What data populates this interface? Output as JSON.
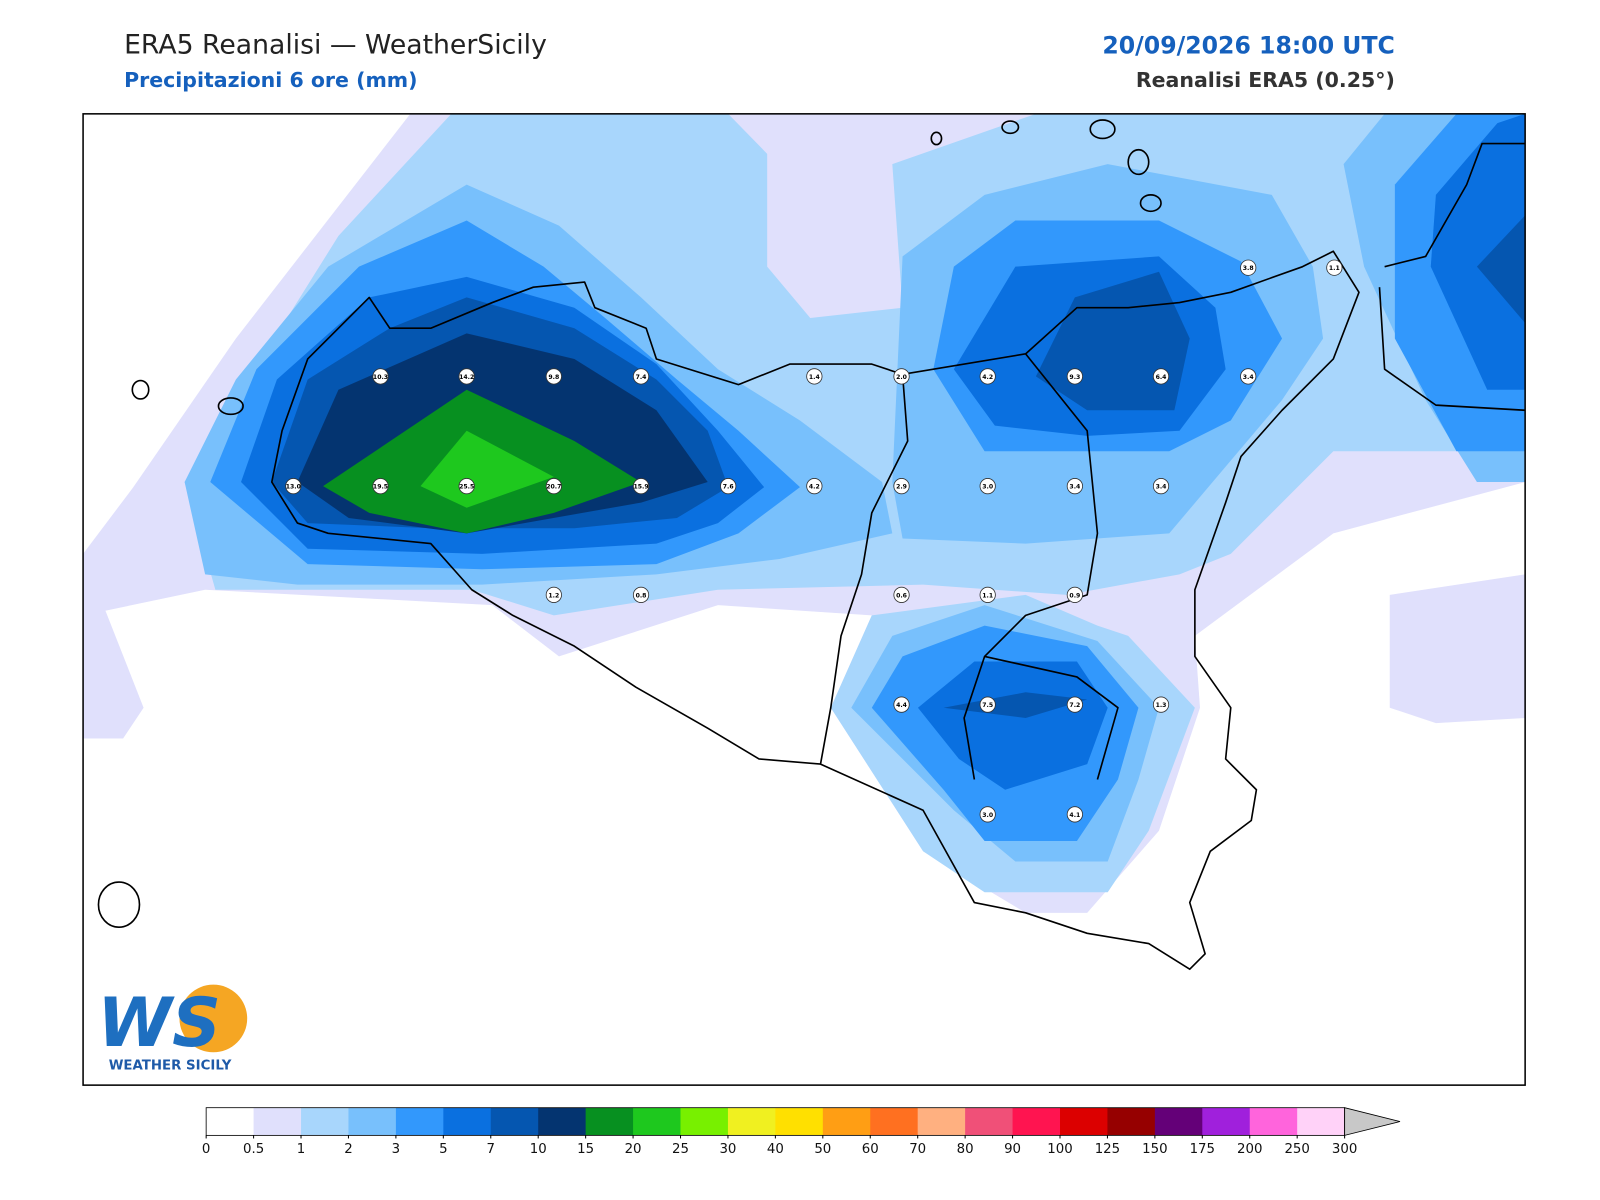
{
  "header": {
    "title": "ERA5 Reanalisi — WeatherSicily",
    "subtitle": "Precipitazioni 6 ore (mm)",
    "datetime": "20/09/2026 18:00 UTC",
    "source": "Reanalisi ERA5 (0.25°)"
  },
  "stations": [
    "3.8",
    "1.1",
    "10.3",
    "14.2",
    "9.8",
    "7.4",
    "1.4",
    "2.0",
    "4.2",
    "9.3",
    "6.4",
    "3.4",
    "13.0",
    "19.5",
    "25.5",
    "20.7",
    "15.9",
    "7.6",
    "4.2",
    "2.9",
    "3.0",
    "3.4",
    "3.4",
    "1.2",
    "0.8",
    "0.6",
    "1.1",
    "0.9",
    "4.4",
    "7.5",
    "7.2",
    "1.3",
    "3.0",
    "4.1"
  ],
  "colorbar": {
    "ticks": [
      0,
      0.5,
      1,
      2,
      3,
      5,
      7,
      10,
      15,
      20,
      25,
      30,
      40,
      50,
      60,
      70,
      80,
      90,
      100,
      125,
      150,
      175,
      200,
      250,
      300
    ],
    "colors": [
      "#ffffff",
      "#e0e0fc",
      "#a8d6fc",
      "#78c0fc",
      "#3298fc",
      "#0a70e0",
      "#0556b0",
      "#043470",
      "#079020",
      "#1ec81e",
      "#78f000",
      "#f0f020",
      "#ffe000",
      "#ff9e14",
      "#ff7020",
      "#ffb080",
      "#f05078",
      "#ff1450",
      "#dc0000",
      "#960000",
      "#640078",
      "#a020dc",
      "#ff64dc",
      "#ffd2f8"
    ],
    "extend_color": "#c8c8c8"
  },
  "logo": {
    "text": "WS",
    "caption": "WEATHER SICILY"
  }
}
